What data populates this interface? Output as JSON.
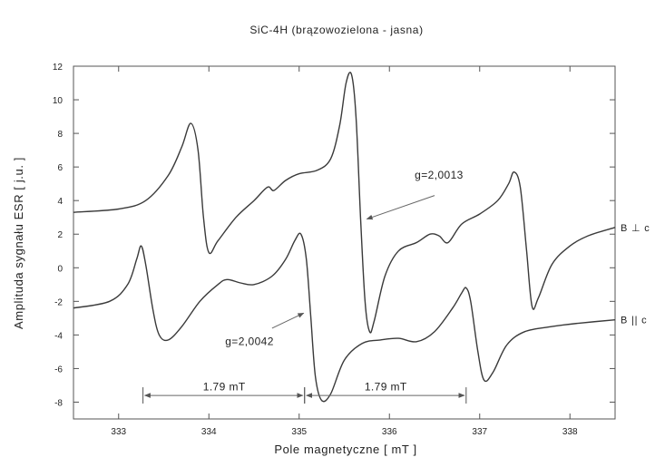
{
  "chart_data": {
    "type": "line",
    "title": "SiC-4H (brązowozielona - jasna)",
    "xlabel": "Pole magnetyczne [ mT ]",
    "ylabel": "Amplituda sygnału ESR [ j.u. ]",
    "xlim": [
      332.5,
      338.5
    ],
    "ylim": [
      -9,
      12
    ],
    "xticks": [
      333,
      334,
      335,
      336,
      337,
      338
    ],
    "yticks": [
      12,
      10,
      8,
      6,
      4,
      2,
      0,
      -2,
      -4,
      -6,
      -8
    ],
    "grid": false,
    "series": [
      {
        "name": "B ⊥ c",
        "x": [
          332.5,
          333.0,
          333.3,
          333.55,
          333.7,
          333.8,
          333.88,
          333.94,
          334.0,
          334.1,
          334.3,
          334.5,
          334.65,
          334.72,
          334.85,
          335.0,
          335.2,
          335.35,
          335.45,
          335.52,
          335.58,
          335.63,
          335.68,
          335.73,
          335.78,
          335.83,
          335.95,
          336.1,
          336.3,
          336.45,
          336.55,
          336.65,
          336.8,
          337.0,
          337.2,
          337.32,
          337.38,
          337.45,
          337.52,
          337.58,
          337.65,
          337.8,
          338.0,
          338.2,
          338.5
        ],
        "values": [
          3.3,
          3.5,
          4.0,
          5.5,
          7.2,
          8.6,
          7.0,
          3.0,
          0.9,
          1.6,
          3.0,
          4.0,
          4.8,
          4.6,
          5.2,
          5.6,
          5.8,
          6.5,
          8.5,
          11.0,
          11.5,
          9.0,
          3.0,
          -2.0,
          -3.8,
          -3.2,
          -0.5,
          1.0,
          1.5,
          2.0,
          1.9,
          1.5,
          2.6,
          3.2,
          4.0,
          5.0,
          5.7,
          4.8,
          1.0,
          -2.3,
          -1.8,
          0.2,
          1.3,
          1.9,
          2.4
        ]
      },
      {
        "name": "B || c",
        "x": [
          332.5,
          332.9,
          333.1,
          333.2,
          333.25,
          333.3,
          333.38,
          333.45,
          333.55,
          333.7,
          333.9,
          334.1,
          334.2,
          334.35,
          334.5,
          334.7,
          334.85,
          334.95,
          335.02,
          335.08,
          335.13,
          335.18,
          335.25,
          335.35,
          335.5,
          335.7,
          335.9,
          336.1,
          336.3,
          336.5,
          336.7,
          336.8,
          336.85,
          336.9,
          336.98,
          337.05,
          337.15,
          337.3,
          337.5,
          337.8,
          338.1,
          338.5
        ],
        "values": [
          -2.4,
          -2.0,
          -1.0,
          0.5,
          1.3,
          0.2,
          -2.5,
          -4.0,
          -4.3,
          -3.5,
          -2.0,
          -1.0,
          -0.7,
          -0.9,
          -1.0,
          -0.5,
          0.5,
          1.6,
          2.0,
          0.5,
          -3.0,
          -6.5,
          -7.9,
          -7.5,
          -5.5,
          -4.5,
          -4.3,
          -4.2,
          -4.4,
          -3.8,
          -2.4,
          -1.5,
          -1.2,
          -2.0,
          -5.0,
          -6.7,
          -6.2,
          -4.6,
          -3.8,
          -3.5,
          -3.3,
          -3.1
        ]
      }
    ],
    "annotations": [
      {
        "text": "g=2,0013",
        "label_x": 336.55,
        "label_y": 5.3,
        "arrow_from": [
          336.5,
          4.3
        ],
        "arrow_to": [
          335.75,
          2.9
        ]
      },
      {
        "text": "g=2,0042",
        "label_x": 334.45,
        "label_y": -4.6,
        "arrow_from": [
          334.7,
          -3.6
        ],
        "arrow_to": [
          335.05,
          -2.7
        ]
      },
      {
        "text": "1.79 mT",
        "bracket": [
          333.27,
          335.06
        ],
        "y": -7.6,
        "label_x": 334.17,
        "label_y": -7.3
      },
      {
        "text": "1.79 mT",
        "bracket": [
          335.06,
          336.85
        ],
        "y": -7.6,
        "label_x": 335.96,
        "label_y": -7.3
      }
    ]
  }
}
